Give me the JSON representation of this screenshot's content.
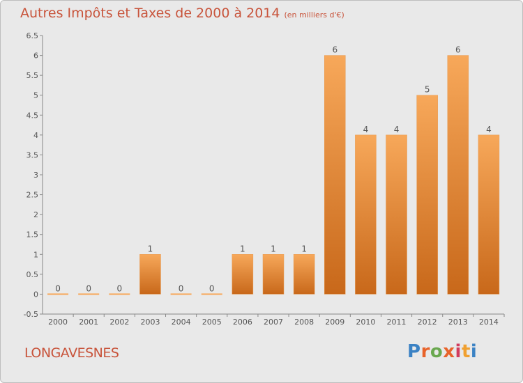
{
  "title": "Autres Impôts et Taxes de 2000 à 2014",
  "title_unit": "(en milliers d'€)",
  "commune": "LONGAVESNES",
  "logo": {
    "letters": [
      "P",
      "r",
      "o",
      "x",
      "i",
      "t",
      "i"
    ],
    "colors": [
      "#3b82c4",
      "#e8632a",
      "#6aa84f",
      "#e8632a",
      "#d23c5e",
      "#f0a030",
      "#3b82c4"
    ]
  },
  "colors": {
    "bar_top": "#f7a85a",
    "bar_bottom": "#c8681a",
    "title": "#c8533a"
  },
  "chart_data": {
    "type": "bar",
    "title": "Autres Impôts et Taxes de 2000 à 2014",
    "categories": [
      "2000",
      "2001",
      "2002",
      "2003",
      "2004",
      "2005",
      "2006",
      "2007",
      "2008",
      "2009",
      "2010",
      "2011",
      "2012",
      "2013",
      "2014"
    ],
    "values": [
      0,
      0,
      0,
      1,
      0,
      0,
      1,
      1,
      1,
      6,
      4,
      4,
      5,
      6,
      4
    ],
    "data_labels": [
      "0",
      "0",
      "0",
      "1",
      "0",
      "0",
      "1",
      "1",
      "1",
      "6",
      "4",
      "4",
      "5",
      "6",
      "4"
    ],
    "yticks": [
      "-0.5",
      "0",
      "0.5",
      "1",
      "1.5",
      "2",
      "2.5",
      "3",
      "3.5",
      "4",
      "4.5",
      "5",
      "5.5",
      "6",
      "6.5"
    ],
    "ylim": [
      -0.5,
      6.5
    ],
    "grid": false
  }
}
